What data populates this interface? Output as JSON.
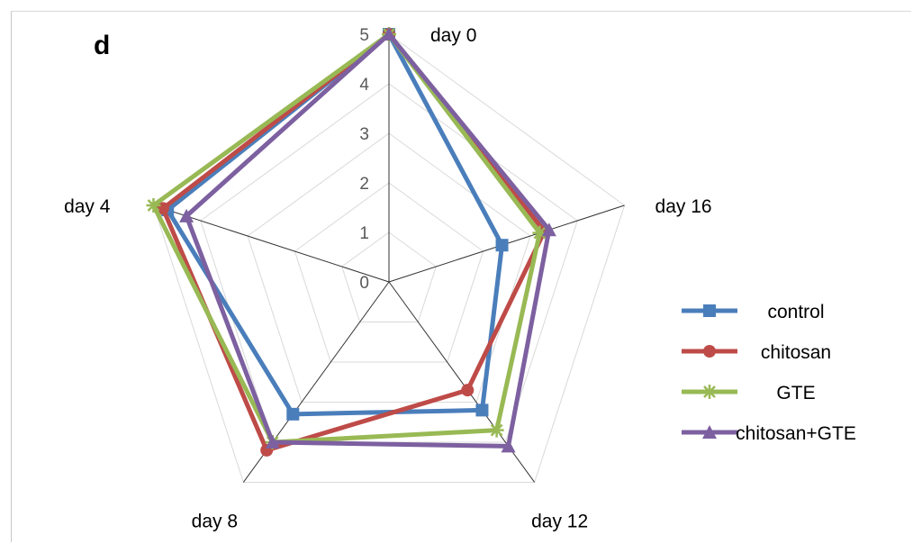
{
  "panel_label": "d",
  "chart_data": {
    "type": "radar",
    "categories": [
      "day 0",
      "day 16",
      "day 12",
      "day 8",
      "day 4"
    ],
    "rlim": [
      0,
      5
    ],
    "r_ticks": [
      "0",
      "1",
      "2",
      "3",
      "4",
      "5"
    ],
    "grid": true,
    "legend_position": "right",
    "series": [
      {
        "name": "control",
        "values": [
          5.0,
          2.4,
          3.2,
          3.3,
          4.7
        ],
        "color": "#4a7ebb",
        "marker": "square"
      },
      {
        "name": "chitosan",
        "values": [
          5.0,
          3.3,
          2.7,
          4.2,
          4.8
        ],
        "color": "#be4b48",
        "marker": "circle"
      },
      {
        "name": "GTE",
        "values": [
          5.0,
          3.2,
          3.7,
          4.0,
          5.0
        ],
        "color": "#98b954",
        "marker": "star"
      },
      {
        "name": "chitosan+GTE",
        "values": [
          5.0,
          3.4,
          4.1,
          4.0,
          4.3
        ],
        "color": "#7d60a0",
        "marker": "triangle"
      }
    ]
  }
}
